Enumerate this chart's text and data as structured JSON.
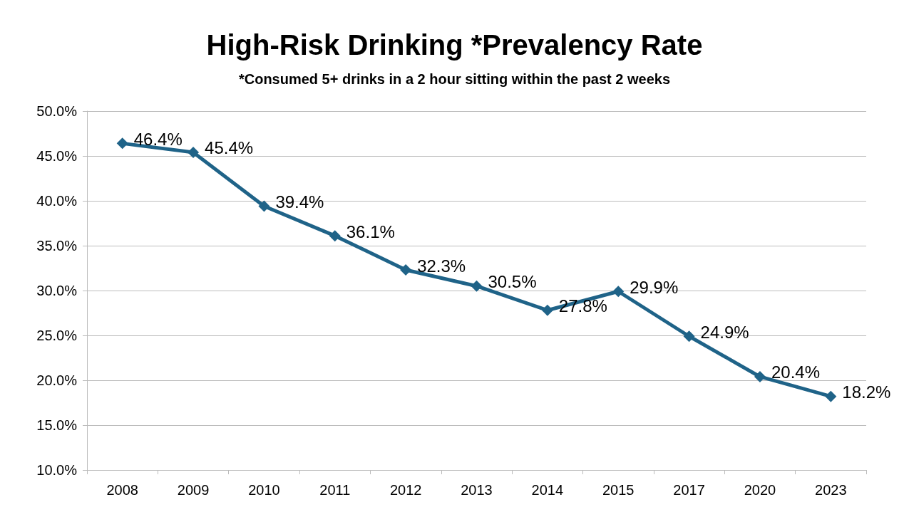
{
  "chart_data": {
    "type": "line",
    "title": "High-Risk Drinking *Prevalency Rate",
    "subtitle": "*Consumed 5+ drinks in a 2 hour sitting within the past 2 weeks",
    "categories": [
      "2008",
      "2009",
      "2010",
      "2011",
      "2012",
      "2013",
      "2014",
      "2015",
      "2017",
      "2020",
      "2023"
    ],
    "series": [
      {
        "color": "#1f6388",
        "values": [
          46.4,
          45.4,
          39.4,
          36.1,
          32.3,
          30.5,
          27.8,
          29.9,
          24.9,
          20.4,
          18.2
        ],
        "value_labels": [
          "46.4%",
          "45.4%",
          "39.4%",
          "36.1%",
          "32.3%",
          "30.5%",
          "27.8%",
          "29.9%",
          "24.9%",
          "20.4%",
          "18.2%"
        ]
      }
    ],
    "ylim": [
      10,
      50
    ],
    "yticks": [
      {
        "value": 10,
        "label": "10.0%"
      },
      {
        "value": 15,
        "label": "15.0%"
      },
      {
        "value": 20,
        "label": "20.0%"
      },
      {
        "value": 25,
        "label": "25.0%"
      },
      {
        "value": 30,
        "label": "30.0%"
      },
      {
        "value": 35,
        "label": "35.0%"
      },
      {
        "value": 40,
        "label": "40.0%"
      },
      {
        "value": 45,
        "label": "45.0%"
      },
      {
        "value": 50,
        "label": "50.0%"
      }
    ],
    "grid": "y",
    "marker": "diamond",
    "line_style": "solid"
  }
}
